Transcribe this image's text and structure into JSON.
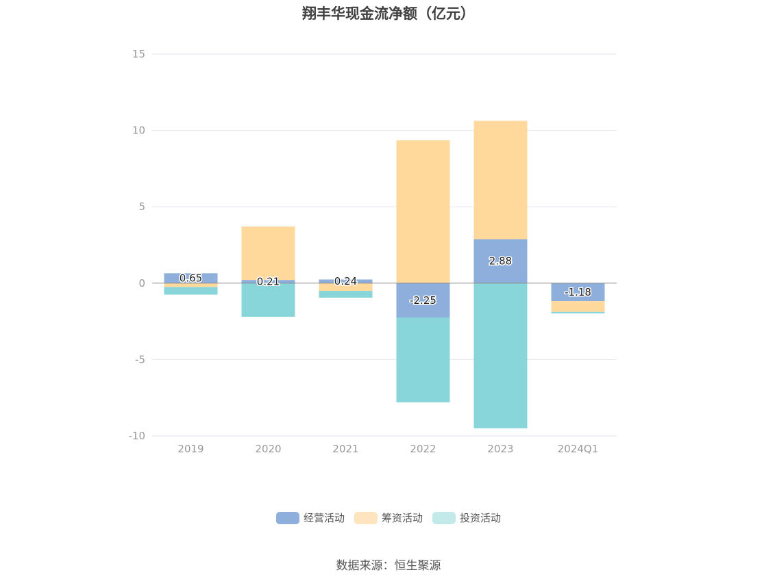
{
  "chart_data": {
    "type": "bar",
    "stacked": true,
    "title": "翔丰华现金流净额（亿元）",
    "categories": [
      "2019",
      "2020",
      "2021",
      "2022",
      "2023",
      "2024Q1"
    ],
    "series": [
      {
        "name": "经营活动",
        "color": "#8eaedb",
        "values": [
          0.65,
          0.21,
          0.24,
          -2.25,
          2.88,
          -1.18
        ],
        "labels": [
          "0.65",
          "0.21",
          "0.24",
          "-2.25",
          "2.88",
          "-1.18"
        ]
      },
      {
        "name": "筹资活动",
        "color": "#ffd99c",
        "values": [
          -0.25,
          3.5,
          -0.5,
          9.35,
          7.75,
          -0.7
        ]
      },
      {
        "name": "投资活动",
        "color": "#88d6d9",
        "values": [
          -0.5,
          -2.2,
          -0.45,
          -5.55,
          -9.5,
          -0.1
        ]
      }
    ],
    "ylim": [
      -10,
      15
    ],
    "yticks": [
      "15",
      "10",
      "5",
      "0",
      "-5",
      "-10"
    ],
    "grid": true,
    "legend_position": "bottom"
  },
  "legend_colors": [
    "#8eaedb",
    "#ffe5bf",
    "#c2eaea"
  ],
  "source": "数据来源：恒生聚源"
}
